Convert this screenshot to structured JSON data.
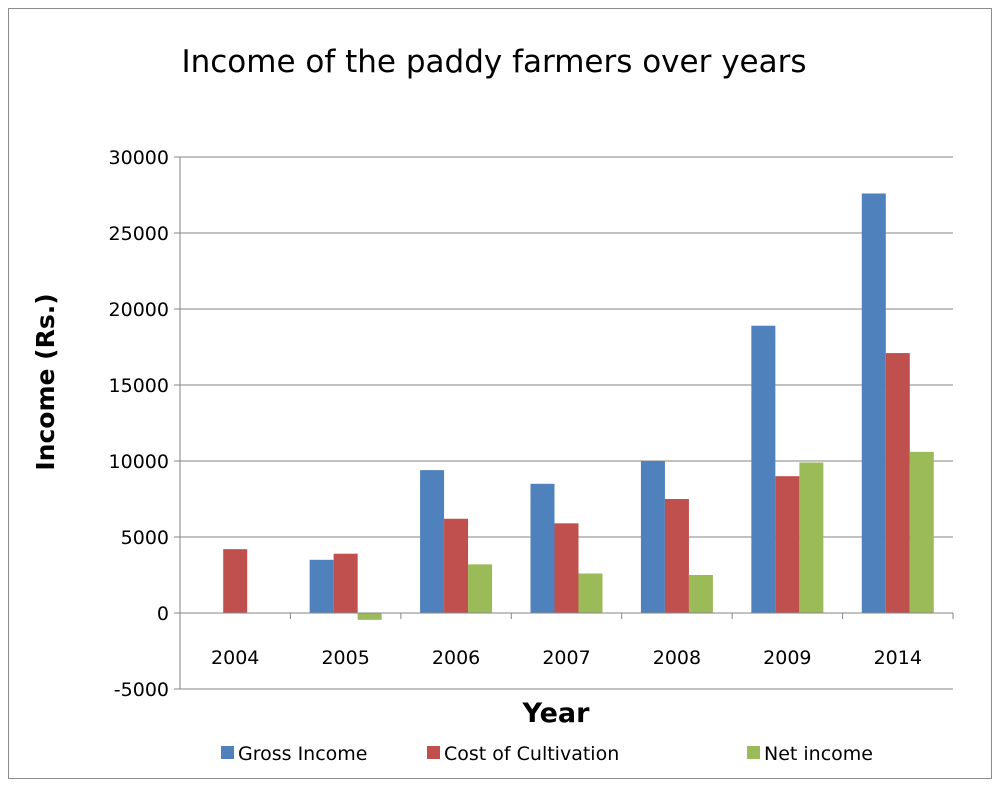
{
  "chart_data": {
    "type": "bar",
    "title": "Income of the paddy farmers over years",
    "xlabel": "Year",
    "ylabel": "Income (Rs.)",
    "categories": [
      "2004",
      "2005",
      "2006",
      "2007",
      "2008",
      "2009",
      "2014"
    ],
    "ylim": [
      -5000,
      30000
    ],
    "yticks": [
      -5000,
      0,
      5000,
      10000,
      15000,
      20000,
      25000,
      30000
    ],
    "grid": true,
    "legend": "bottom",
    "series": [
      {
        "name": "Gross Income",
        "color": "#4f81bd",
        "values": [
          0,
          3500,
          9400,
          8500,
          10000,
          18900,
          27600
        ]
      },
      {
        "name": "Cost of Cultivation",
        "color": "#c0504d",
        "values": [
          4200,
          3900,
          6200,
          5900,
          7500,
          9000,
          17100
        ]
      },
      {
        "name": "Net income",
        "color": "#9bbb59",
        "values": [
          0,
          -450,
          3200,
          2600,
          2500,
          9900,
          10600
        ]
      }
    ]
  }
}
